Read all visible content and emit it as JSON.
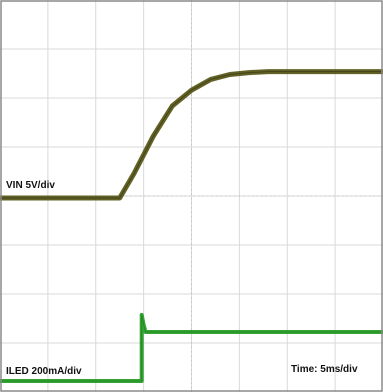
{
  "chart_data": {
    "type": "line",
    "title": "",
    "x_unit": "ms",
    "grid": true,
    "grid_divisions": {
      "x": 8,
      "y": 8
    },
    "xlim": [
      -20,
      20
    ],
    "series": [
      {
        "name": "VIN 5V/div",
        "color": "#5a5a1a",
        "x": [
          -20,
          -7.5,
          -6,
          -4,
          -2,
          0,
          2,
          4,
          6,
          8,
          10,
          15,
          20
        ],
        "y": [
          0,
          0,
          2.5,
          6.3,
          9.4,
          11.0,
          12.1,
          12.6,
          12.8,
          12.9,
          12.9,
          12.9,
          12.9
        ]
      },
      {
        "name": "ILED 200mA/div",
        "color": "#2aa02a",
        "x": [
          -20,
          -5.2,
          -5.2,
          -5.0,
          -4.8,
          20
        ],
        "y": [
          0,
          0,
          270,
          230,
          200,
          200
        ]
      }
    ],
    "labels": {
      "vin": "VIN 5V/div",
      "iled": "ILED 200mA/div",
      "time": "Time: 5ms/div"
    }
  }
}
